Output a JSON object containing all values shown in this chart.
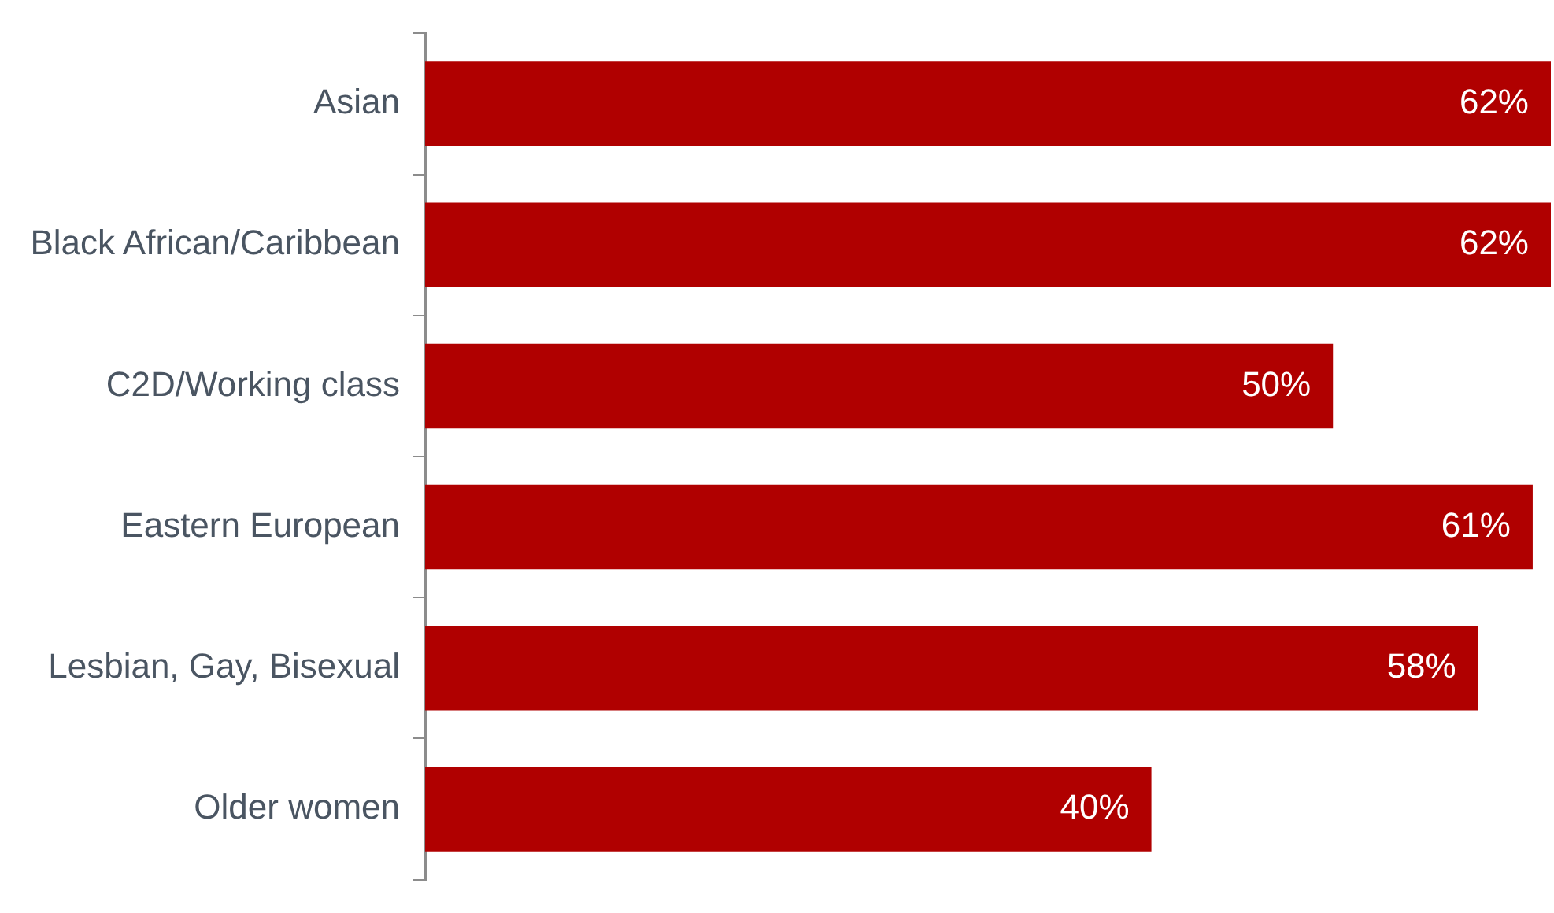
{
  "chart_data": {
    "type": "bar",
    "orientation": "horizontal",
    "categories": [
      "Asian",
      "Black African/Caribbean",
      "C2D/Working class",
      "Eastern European",
      "Lesbian, Gay, Bisexual",
      "Older women"
    ],
    "values": [
      62,
      62,
      50,
      61,
      58,
      40
    ],
    "value_labels": [
      "62%",
      "62%",
      "50%",
      "61%",
      "58%",
      "40%"
    ],
    "color": "#b00000",
    "legend": false
  }
}
